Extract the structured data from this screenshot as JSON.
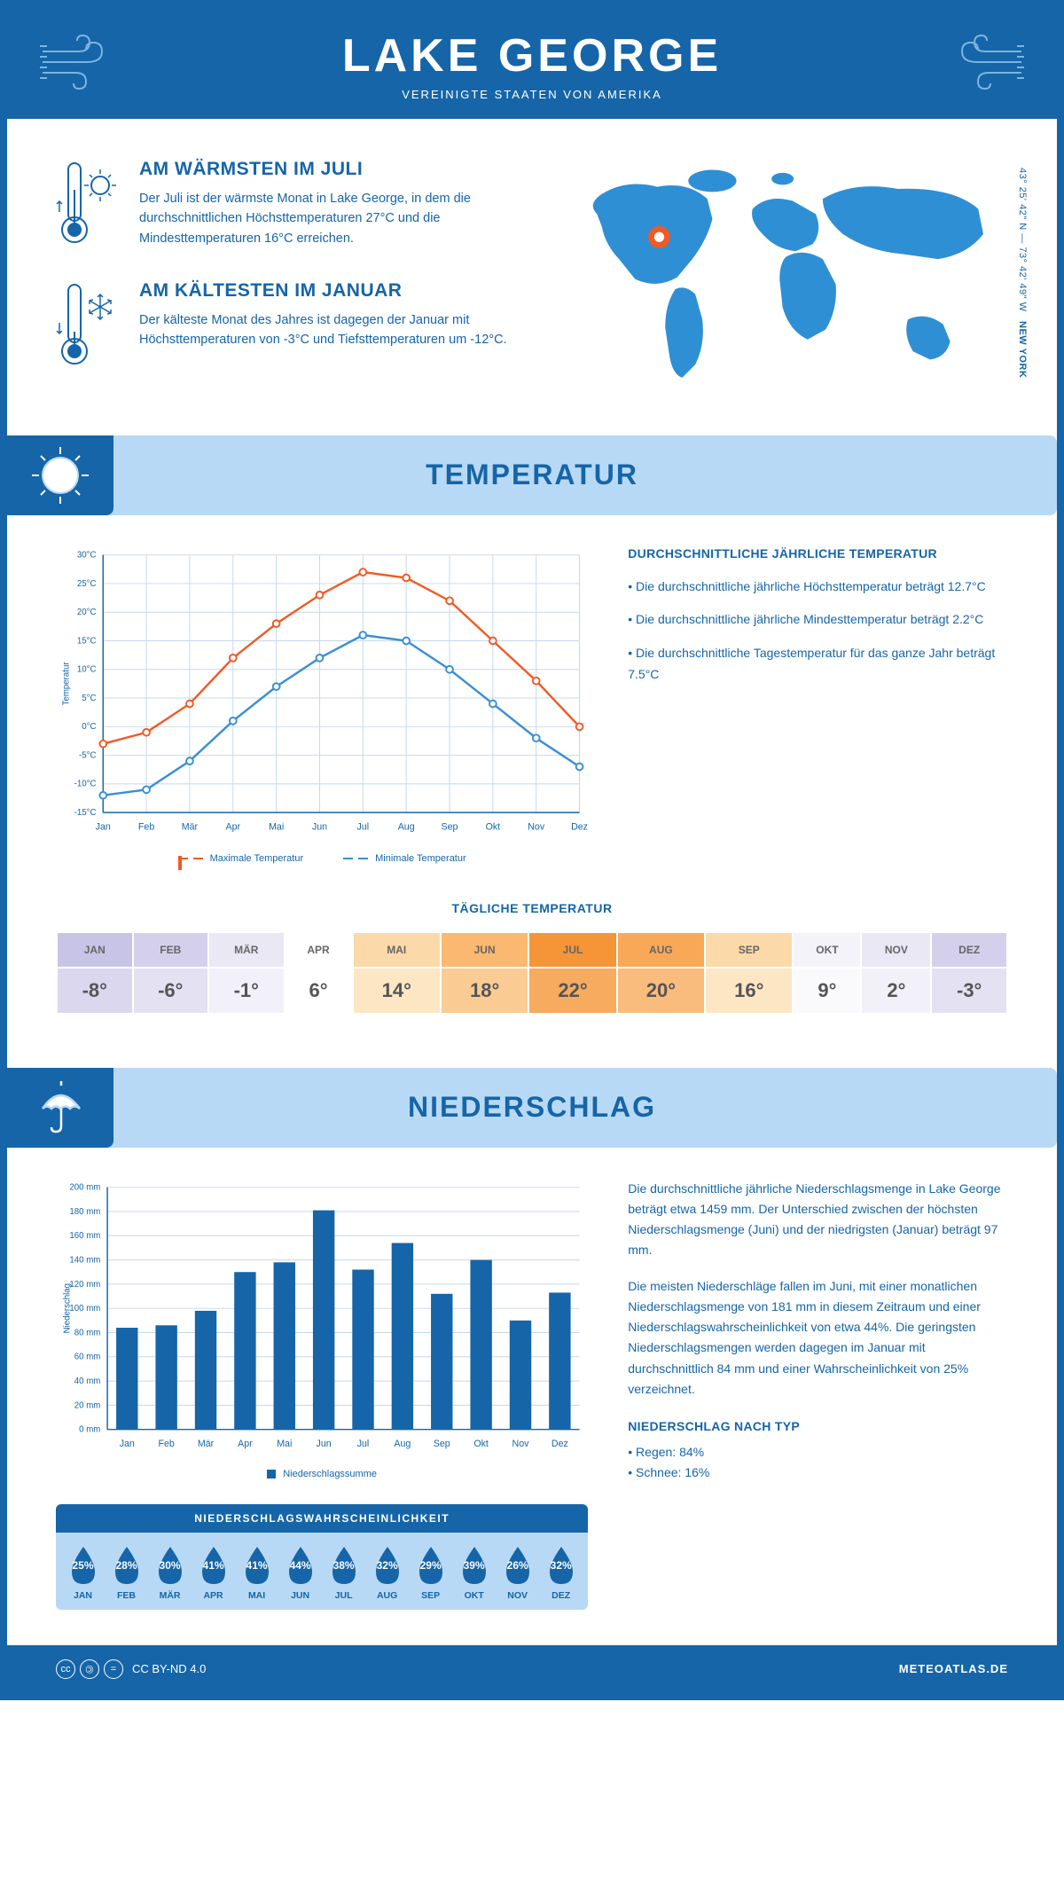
{
  "header": {
    "title": "LAKE GEORGE",
    "subtitle": "VEREINIGTE STAATEN VON AMERIKA"
  },
  "coords": "43° 25' 42\" N — 73° 42' 49\" W",
  "state": "NEW YORK",
  "warmest": {
    "title": "AM WÄRMSTEN IM JULI",
    "text": "Der Juli ist der wärmste Monat in Lake George, in dem die durchschnittlichen Höchsttemperaturen 27°C und die Mindesttemperaturen 16°C erreichen."
  },
  "coldest": {
    "title": "AM KÄLTESTEN IM JANUAR",
    "text": "Der kälteste Monat des Jahres ist dagegen der Januar mit Höchsttemperaturen von -3°C und Tiefsttemperaturen um -12°C."
  },
  "temp_section_title": "TEMPERATUR",
  "precip_section_title": "NIEDERSCHLAG",
  "temp_info": {
    "title": "DURCHSCHNITTLICHE JÄHRLICHE TEMPERATUR",
    "bullet1": "• Die durchschnittliche jährliche Höchsttemperatur beträgt 12.7°C",
    "bullet2": "• Die durchschnittliche jährliche Mindesttemperatur beträgt 2.2°C",
    "bullet3": "• Die durchschnittliche Tagestemperatur für das ganze Jahr beträgt 7.5°C"
  },
  "legend": {
    "max": "Maximale Temperatur",
    "min": "Minimale Temperatur"
  },
  "daily_title": "TÄGLICHE TEMPERATUR",
  "months": [
    "JAN",
    "FEB",
    "MÄR",
    "APR",
    "MAI",
    "JUN",
    "JUL",
    "AUG",
    "SEP",
    "OKT",
    "NOV",
    "DEZ"
  ],
  "months_long": [
    "Jan",
    "Feb",
    "Mär",
    "Apr",
    "Mai",
    "Jun",
    "Jul",
    "Aug",
    "Sep",
    "Okt",
    "Nov",
    "Dez"
  ],
  "daily_temps": [
    "-8°",
    "-6°",
    "-1°",
    "6°",
    "14°",
    "18°",
    "22°",
    "20°",
    "16°",
    "9°",
    "2°",
    "-3°"
  ],
  "daily_colors_top": [
    "#c8c4e8",
    "#d4d0ec",
    "#eae8f5",
    "#fff",
    "#fcd9a8",
    "#fab870",
    "#f59538",
    "#f9a858",
    "#fcd9a8",
    "#f5f3fa",
    "#eae8f5",
    "#d4d0ec"
  ],
  "daily_colors_bot": [
    "#dad7ef",
    "#e4e1f3",
    "#f2f0f9",
    "#fff",
    "#fde6c4",
    "#fbcb94",
    "#f7ab5e",
    "#fabc7c",
    "#fde6c4",
    "#faf9fc",
    "#f2f0f9",
    "#e4e1f3"
  ],
  "temp_chart": {
    "ylabel": "Temperatur",
    "ymin": -15,
    "ymax": 30,
    "ystep": 5,
    "max_series": [
      -3,
      -1,
      4,
      12,
      18,
      23,
      27,
      26,
      22,
      15,
      8,
      0
    ],
    "min_series": [
      -12,
      -11,
      -6,
      1,
      7,
      12,
      16,
      15,
      10,
      4,
      -2,
      -7
    ],
    "max_color": "#f15a24",
    "min_color": "#3a8fd4",
    "grid_color": "#c5d8ec",
    "axis_color": "#1565a8"
  },
  "precip_chart": {
    "ylabel": "Niederschlag",
    "legend": "Niederschlagssumme",
    "ymin": 0,
    "ymax": 200,
    "ystep": 20,
    "values": [
      84,
      86,
      98,
      130,
      138,
      181,
      132,
      154,
      112,
      140,
      90,
      113
    ],
    "bar_color": "#1565a8",
    "grid_color": "#c5d8ec"
  },
  "precip_text1": "Die durchschnittliche jährliche Niederschlagsmenge in Lake George beträgt etwa 1459 mm. Der Unterschied zwischen der höchsten Niederschlagsmenge (Juni) und der niedrigsten (Januar) beträgt 97 mm.",
  "precip_text2": "Die meisten Niederschläge fallen im Juni, mit einer monatlichen Niederschlagsmenge von 181 mm in diesem Zeitraum und einer Niederschlagswahrscheinlichkeit von etwa 44%. Die geringsten Niederschlagsmengen werden dagegen im Januar mit durchschnittlich 84 mm und einer Wahrscheinlichkeit von 25% verzeichnet.",
  "precip_type": {
    "title": "NIEDERSCHLAG NACH TYP",
    "rain": "• Regen: 84%",
    "snow": "• Schnee: 16%"
  },
  "prob_title": "NIEDERSCHLAGSWAHRSCHEINLICHKEIT",
  "prob_values": [
    "25%",
    "28%",
    "30%",
    "41%",
    "41%",
    "44%",
    "38%",
    "32%",
    "29%",
    "39%",
    "26%",
    "32%"
  ],
  "footer": {
    "license": "CC BY-ND 4.0",
    "site": "METEOATLAS.DE"
  }
}
